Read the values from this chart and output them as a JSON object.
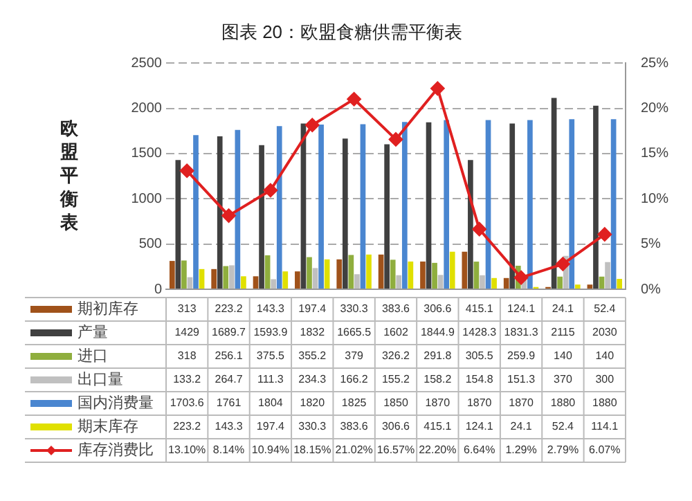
{
  "chart_data": {
    "type": "bar",
    "title": "图表 20：欧盟食糖供需平衡表",
    "ylabel": "欧盟平衡表",
    "categories": [
      null,
      null,
      null,
      null,
      null,
      null,
      null,
      null,
      null,
      null,
      null
    ],
    "ylim": [
      0,
      2500
    ],
    "yticks": [
      0,
      500,
      1000,
      1500,
      2000,
      2500
    ],
    "y2lim": [
      0,
      25
    ],
    "y2ticks": [
      {
        "value": 0,
        "label": "0%"
      },
      {
        "value": 5,
        "label": "5%"
      },
      {
        "value": 10,
        "label": "10%"
      },
      {
        "value": 15,
        "label": "15%"
      },
      {
        "value": 20,
        "label": "20%"
      },
      {
        "value": 25,
        "label": "25%"
      }
    ],
    "grid": "y",
    "legend": "bottom",
    "marker": "diamond",
    "series": [
      {
        "name": "期初库存",
        "color": "#a0521a",
        "values": [
          313,
          223.2,
          143.3,
          197.4,
          330.3,
          383.6,
          306.6,
          415.1,
          124.1,
          24.1,
          52.4
        ],
        "value_labels": [
          "313",
          "223.2",
          "143.3",
          "197.4",
          "330.3",
          "383.6",
          "306.6",
          "415.1",
          "124.1",
          "24.1",
          "52.4"
        ]
      },
      {
        "name": "产量",
        "color": "#404040",
        "values": [
          1429,
          1689.7,
          1593.9,
          1832,
          1665.5,
          1602,
          1844.9,
          1428.3,
          1831.3,
          2115,
          2030
        ],
        "value_labels": [
          "1429",
          "1689.7",
          "1593.9",
          "1832",
          "1665.5",
          "1602",
          "1844.9",
          "1428.3",
          "1831.3",
          "2115",
          "2030"
        ]
      },
      {
        "name": "进口",
        "color": "#8fae3e",
        "values": [
          318,
          256.1,
          375.5,
          355.2,
          379,
          326.2,
          291.8,
          305.5,
          259.9,
          140,
          140
        ],
        "value_labels": [
          "318",
          "256.1",
          "375.5",
          "355.2",
          "379",
          "326.2",
          "291.8",
          "305.5",
          "259.9",
          "140",
          "140"
        ]
      },
      {
        "name": "出口量",
        "color": "#c0c0c0",
        "values": [
          133.2,
          264.7,
          111.3,
          234.3,
          166.2,
          155.2,
          158.2,
          154.8,
          151.3,
          370,
          300
        ],
        "value_labels": [
          "133.2",
          "264.7",
          "111.3",
          "234.3",
          "166.2",
          "155.2",
          "158.2",
          "154.8",
          "151.3",
          "370",
          "300"
        ]
      },
      {
        "name": "国内消费量",
        "color": "#4a86d0",
        "values": [
          1703.6,
          1761,
          1804,
          1820,
          1825,
          1850,
          1870,
          1870,
          1870,
          1880,
          1880
        ],
        "value_labels": [
          "1703.6",
          "1761",
          "1804",
          "1820",
          "1825",
          "1850",
          "1870",
          "1870",
          "1870",
          "1880",
          "1880"
        ]
      },
      {
        "name": "期末库存",
        "color": "#e0e000",
        "values": [
          223.2,
          143.3,
          197.4,
          330.3,
          383.6,
          306.6,
          415.1,
          124.1,
          24.1,
          52.4,
          114.1
        ],
        "value_labels": [
          "223.2",
          "143.3",
          "197.4",
          "330.3",
          "383.6",
          "306.6",
          "415.1",
          "124.1",
          "24.1",
          "52.4",
          "114.1"
        ]
      },
      {
        "name": "库存消费比",
        "type": "line",
        "axis": "y2",
        "color": "#e02020",
        "values": [
          13.1,
          8.14,
          10.94,
          18.15,
          21.02,
          16.57,
          22.2,
          6.64,
          1.29,
          2.79,
          6.07
        ],
        "value_labels": [
          "13.10%",
          "8.14%",
          "10.94%",
          "18.15%",
          "21.02%",
          "16.57%",
          "22.20%",
          "6.64%",
          "1.29%",
          "2.79%",
          "6.07%"
        ]
      }
    ]
  }
}
